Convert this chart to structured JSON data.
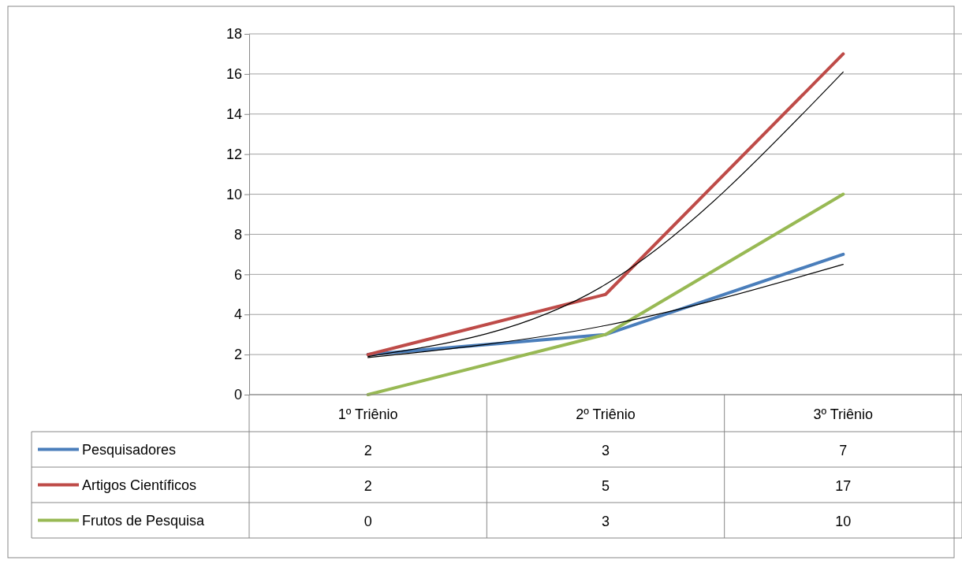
{
  "chart_data": {
    "type": "line",
    "categories": [
      "1º Triênio",
      "2º Triênio",
      "3º Triênio"
    ],
    "series": [
      {
        "name": "Pesquisadores",
        "color": "#4a7ebb",
        "values": [
          2,
          3,
          7
        ],
        "value_labels": [
          "2",
          "3",
          "7"
        ]
      },
      {
        "name": "Artigos Científicos",
        "color": "#be4b48",
        "values": [
          2,
          5,
          17
        ],
        "value_labels": [
          "2",
          "5",
          "17"
        ]
      },
      {
        "name": "Frutos de Pesquisa",
        "color": "#98b954",
        "values": [
          0,
          3,
          10
        ],
        "value_labels": [
          "0",
          "3",
          "10"
        ]
      },
      {
        "type": "line",
        "color": "#000000",
        "values": [
          1.9,
          5.5,
          16.1
        ]
      },
      {
        "type": "line",
        "color": "#000000",
        "values": [
          1.85,
          3.45,
          6.5
        ]
      }
    ],
    "ylim": [
      0,
      18
    ],
    "yticks": [
      0,
      2,
      4,
      6,
      8,
      10,
      12,
      14,
      16,
      18
    ],
    "grid": "y",
    "legend": "bottom left",
    "marker": "none"
  }
}
